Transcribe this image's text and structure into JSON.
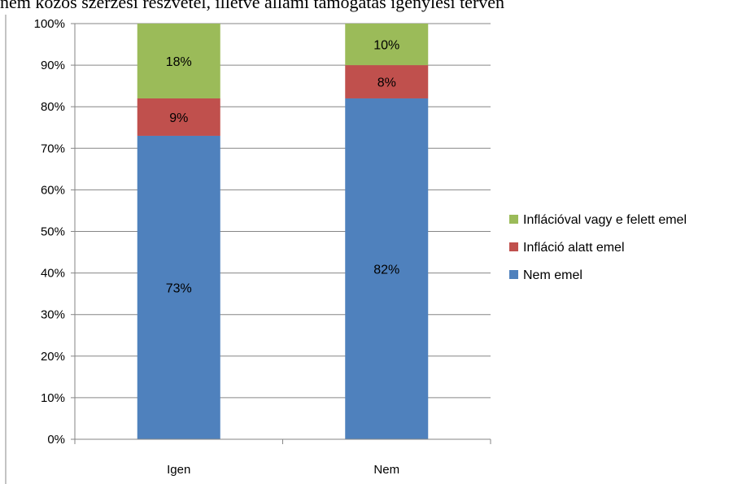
{
  "caption": "nem közös szerzési részvétel, illetve állami támogatás igénylési terven",
  "chart_data": {
    "type": "bar",
    "stacked": true,
    "percent": true,
    "categories": [
      "Igen",
      "Nem"
    ],
    "series": [
      {
        "name": "Nem emel",
        "values": [
          73,
          82
        ],
        "labels": [
          "73%",
          "82%"
        ],
        "color": "#4f81bd"
      },
      {
        "name": "Infláció alatt emel",
        "values": [
          9,
          8
        ],
        "labels": [
          "9%",
          "8%"
        ],
        "color": "#c0504d"
      },
      {
        "name": "Inflációval vagy e felett emel",
        "values": [
          18,
          10
        ],
        "labels": [
          "18%",
          "10%"
        ],
        "color": "#9bbb59"
      }
    ],
    "ylim": [
      0,
      100
    ],
    "yticks": [
      "0%",
      "10%",
      "20%",
      "30%",
      "40%",
      "50%",
      "60%",
      "70%",
      "80%",
      "90%",
      "100%"
    ],
    "grid": true,
    "legend_position": "right",
    "legend_order": [
      "Inflációval vagy e felett emel",
      "Infláció alatt emel",
      "Nem emel"
    ],
    "title": "",
    "xlabel": "",
    "ylabel": ""
  }
}
